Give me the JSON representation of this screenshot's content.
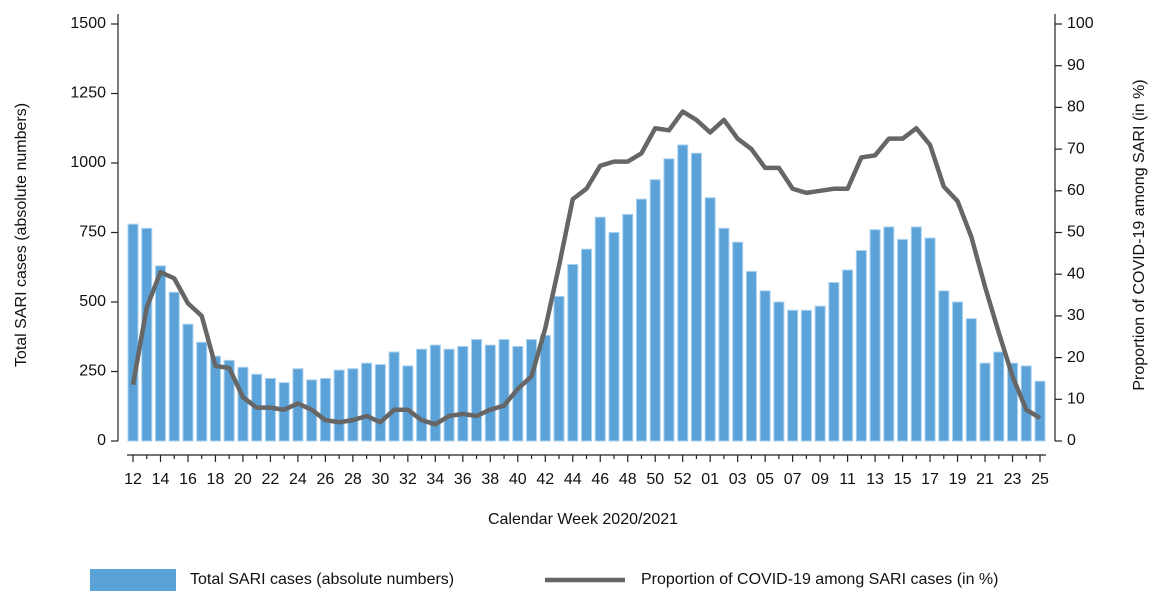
{
  "chart_data": {
    "type": "bar_line",
    "xlabel": "Calendar Week 2020/2021",
    "ylabel": "Total SARI cases (absolute numbers)",
    "y2label": "Proportion of COVID-19 among SARI (in %)",
    "categories": [
      "12",
      null,
      "14",
      null,
      "16",
      null,
      "18",
      null,
      "20",
      null,
      "22",
      null,
      "24",
      null,
      "26",
      null,
      "28",
      null,
      "30",
      null,
      "32",
      null,
      "34",
      null,
      "36",
      null,
      "38",
      null,
      "40",
      null,
      "42",
      null,
      "44",
      null,
      "46",
      null,
      "48",
      null,
      "50",
      null,
      "52",
      null,
      "01",
      null,
      "03",
      null,
      "05",
      null,
      "07",
      null,
      "09",
      null,
      "11",
      null,
      "13",
      null,
      "15",
      null,
      "17",
      null,
      "19",
      null,
      "21",
      null,
      "23",
      null,
      "25"
    ],
    "series": [
      {
        "name": "Total SARI cases (absolute numbers)",
        "type": "bar",
        "color": "#5aa2d8",
        "values": [
          780,
          765,
          630,
          535,
          420,
          355,
          305,
          290,
          265,
          240,
          225,
          210,
          260,
          220,
          225,
          255,
          260,
          280,
          275,
          320,
          270,
          330,
          345,
          330,
          340,
          365,
          345,
          365,
          340,
          365,
          380,
          520,
          635,
          690,
          805,
          750,
          815,
          870,
          940,
          1015,
          1065,
          1035,
          875,
          765,
          715,
          610,
          540,
          500,
          470,
          470,
          485,
          570,
          615,
          685,
          760,
          770,
          725,
          770,
          730,
          540,
          500,
          440,
          280,
          320,
          280,
          270,
          215
        ]
      },
      {
        "name": "Proportion of COVID-19 among SARI cases (in %)",
        "type": "line",
        "axis": "y2",
        "color": "#666666",
        "values": [
          13.5,
          32,
          40.5,
          39,
          33,
          30,
          18,
          17.5,
          10.5,
          8,
          8,
          7.5,
          9,
          7.5,
          5,
          4.5,
          5,
          6,
          4.5,
          7.5,
          7.5,
          5,
          4,
          6,
          6.5,
          6,
          7.5,
          8.5,
          12.5,
          15.5,
          27,
          42,
          58,
          60.5,
          66,
          67,
          67,
          69,
          75,
          74.5,
          79,
          77,
          74,
          77,
          72.5,
          70,
          65.5,
          65.5,
          60.5,
          59.5,
          60,
          60.5,
          60.5,
          68,
          68.5,
          72.5,
          72.5,
          75,
          71,
          61,
          57.5,
          49,
          37,
          26,
          15.5,
          7.5,
          5.5
        ]
      }
    ],
    "ylim": [
      0,
      1500
    ],
    "yticks": [
      0,
      250,
      500,
      750,
      1000,
      1250,
      1500
    ],
    "y2lim": [
      0,
      100
    ],
    "y2ticks": [
      0,
      10,
      20,
      30,
      40,
      50,
      60,
      70,
      80,
      90,
      100
    ],
    "legend": "bottom"
  }
}
